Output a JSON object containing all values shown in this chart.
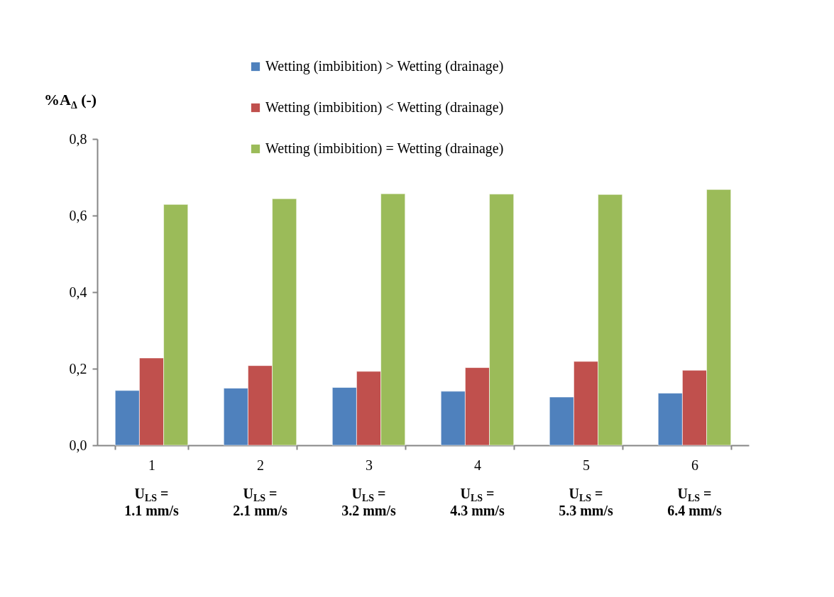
{
  "chart_data": {
    "type": "bar",
    "categories": [
      "1",
      "2",
      "3",
      "4",
      "5",
      "6"
    ],
    "ylabel": "%A$_{Δ}$ (-)",
    "series": [
      {
        "name": "Wetting (imbibition) > Wetting (drainage)",
        "color": "#4f81bd",
        "values": [
          0.143,
          0.149,
          0.151,
          0.141,
          0.126,
          0.136
        ]
      },
      {
        "name": "Wetting (imbibition) < Wetting (drainage)",
        "color": "#c0504d",
        "values": [
          0.228,
          0.208,
          0.193,
          0.203,
          0.219,
          0.196
        ]
      },
      {
        "name": "Wetting (imbibition) = Wetting (drainage)",
        "color": "#9bbb59",
        "values": [
          0.629,
          0.644,
          0.657,
          0.656,
          0.655,
          0.668
        ]
      }
    ],
    "ylim": [
      0,
      0.8
    ],
    "yticks": [
      {
        "value": 0,
        "label": "0,0"
      },
      {
        "value": 0.2,
        "label": "0,2"
      },
      {
        "value": 0.4,
        "label": "0,4"
      },
      {
        "value": 0.6,
        "label": "0,6"
      },
      {
        "value": 0.8,
        "label": "0,8"
      }
    ],
    "annotations": [
      "U$_{LS}$ =\n1.1 mm/s",
      "U$_{LS}$ =\n2.1 mm/s",
      "U$_{LS}$ =\n3.2 mm/s",
      "U$_{LS}$ =\n4.3 mm/s",
      "U$_{LS}$ =\n5.3 mm/s",
      "U$_{LS}$ =\n6.4 mm/s"
    ],
    "grid": false,
    "legend": "top"
  }
}
